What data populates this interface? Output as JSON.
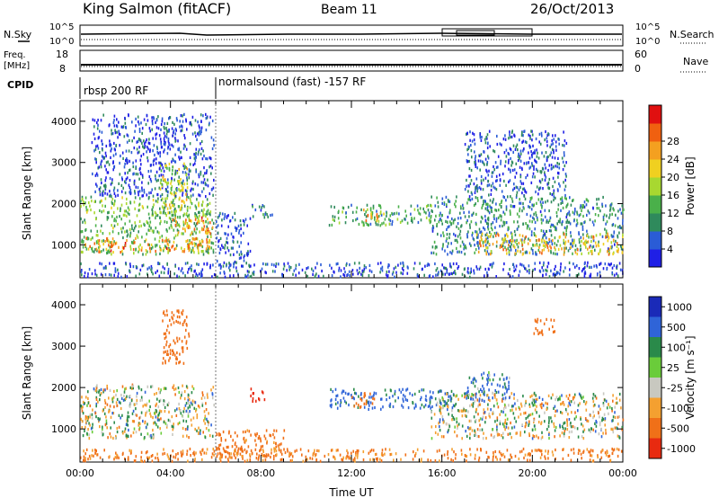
{
  "header": {
    "station": "King Salmon (fitACF)",
    "beam": "Beam 11",
    "date": "26/Oct/2013"
  },
  "status_panels": {
    "nsky_label": "N.Sky",
    "nsearch_label": "N.Search",
    "noise_ticks_left": [
      "10^5",
      "10^0"
    ],
    "noise_ticks_right": [
      "10^5",
      "10^0"
    ],
    "freq_label": [
      "Freq.",
      "[MHz]"
    ],
    "freq_ticks": [
      "18",
      "8"
    ],
    "nave_label": "Nave",
    "nave_ticks": [
      "60",
      "0"
    ],
    "cpid_label": "CPID",
    "cpid_segments": [
      {
        "label": "rbsp 200 RF",
        "start_hour": 0
      },
      {
        "label": "normalsound (fast) -157 RF",
        "start_hour": 6
      }
    ]
  },
  "chart_data": [
    {
      "type": "heatmap",
      "panel": "power",
      "ylabel": "Slant Range [km]",
      "xlabel": "Time UT",
      "x_range_hours": [
        0,
        24
      ],
      "y_range_km": [
        200,
        4500
      ],
      "y_ticks": [
        1000,
        2000,
        3000,
        4000
      ],
      "colorbar": {
        "label": "Power [dB]",
        "range": [
          0,
          30
        ],
        "tick_labels": [
          "4",
          "8",
          "12",
          "16",
          "20",
          "24",
          "28"
        ],
        "colors": [
          "#1f1fe6",
          "#2a5cd6",
          "#2f8a5c",
          "#4ab04a",
          "#a8d830",
          "#f0d020",
          "#f4a020",
          "#f06010",
          "#e01010"
        ]
      },
      "echo_regions": [
        {
          "t0": 0.0,
          "t1": 5.9,
          "r0": 800,
          "r1": 2200,
          "level": 12
        },
        {
          "t0": 0.2,
          "t1": 5.8,
          "r0": 850,
          "r1": 1200,
          "level": 22
        },
        {
          "t0": 4.0,
          "t1": 5.9,
          "r0": 1300,
          "r1": 1700,
          "level": 22
        },
        {
          "t0": 0.5,
          "t1": 5.9,
          "r0": 2200,
          "r1": 4200,
          "level": 4
        },
        {
          "t0": 3.5,
          "t1": 4.8,
          "r0": 1800,
          "r1": 3000,
          "level": 16
        },
        {
          "t0": 6.0,
          "t1": 7.5,
          "r0": 500,
          "r1": 1800,
          "level": 4
        },
        {
          "t0": 7.5,
          "t1": 8.5,
          "r0": 1700,
          "r1": 2000,
          "level": 6
        },
        {
          "t0": 11.0,
          "t1": 15.5,
          "r0": 1500,
          "r1": 2000,
          "level": 10
        },
        {
          "t0": 12.5,
          "t1": 13.5,
          "r0": 1600,
          "r1": 1900,
          "level": 20
        },
        {
          "t0": 15.5,
          "t1": 24.0,
          "r0": 800,
          "r1": 2200,
          "level": 8
        },
        {
          "t0": 17.5,
          "t1": 24.0,
          "r0": 800,
          "r1": 1300,
          "level": 20
        },
        {
          "t0": 17.0,
          "t1": 21.5,
          "r0": 2200,
          "r1": 3800,
          "level": 5
        },
        {
          "t0": 0.0,
          "t1": 24.0,
          "r0": 250,
          "r1": 600,
          "level": 4
        }
      ]
    },
    {
      "type": "heatmap",
      "panel": "velocity",
      "ylabel": "Slant Range [km]",
      "xlabel": "Time UT",
      "x_range_hours": [
        0,
        24
      ],
      "y_range_km": [
        200,
        4500
      ],
      "y_ticks": [
        1000,
        2000,
        3000,
        4000
      ],
      "x_tick_labels": [
        "00:00",
        "04:00",
        "08:00",
        "12:00",
        "16:00",
        "20:00",
        "00:00"
      ],
      "colorbar": {
        "label": "Velocity [m s⁻¹]",
        "range": [
          -1200,
          1200
        ],
        "tick_labels": [
          "1000",
          "500",
          "100",
          "25",
          "-25",
          "-100",
          "-500",
          "-1000"
        ],
        "colors": [
          "#1a2ab8",
          "#2f64d8",
          "#2a8a4a",
          "#6acc3a",
          "#c8c8c0",
          "#f4a030",
          "#f07018",
          "#e82a10"
        ]
      },
      "echo_regions": [
        {
          "t0": 0.0,
          "t1": 5.9,
          "r0": 800,
          "r1": 2100,
          "value": 0
        },
        {
          "t0": 3.6,
          "t1": 4.8,
          "r0": 2600,
          "r1": 3900,
          "value": -300
        },
        {
          "t0": 7.5,
          "t1": 8.2,
          "r0": 1700,
          "r1": 2000,
          "value": -800
        },
        {
          "t0": 11.0,
          "t1": 16.5,
          "r0": 1500,
          "r1": 2000,
          "value": 150
        },
        {
          "t0": 12.0,
          "t1": 13.0,
          "r0": 1550,
          "r1": 1900,
          "value": -300
        },
        {
          "t0": 15.5,
          "t1": 24.0,
          "r0": 800,
          "r1": 1900,
          "value": 0
        },
        {
          "t0": 17.0,
          "t1": 19.0,
          "r0": 1700,
          "r1": 2400,
          "value": 120
        },
        {
          "t0": 20.0,
          "t1": 21.0,
          "r0": 3300,
          "r1": 3700,
          "value": -300
        },
        {
          "t0": 6.0,
          "t1": 9.0,
          "r0": 300,
          "r1": 1000,
          "value": -200
        },
        {
          "t0": 0.0,
          "t1": 24.0,
          "r0": 250,
          "r1": 550,
          "value": -150
        }
      ]
    }
  ]
}
